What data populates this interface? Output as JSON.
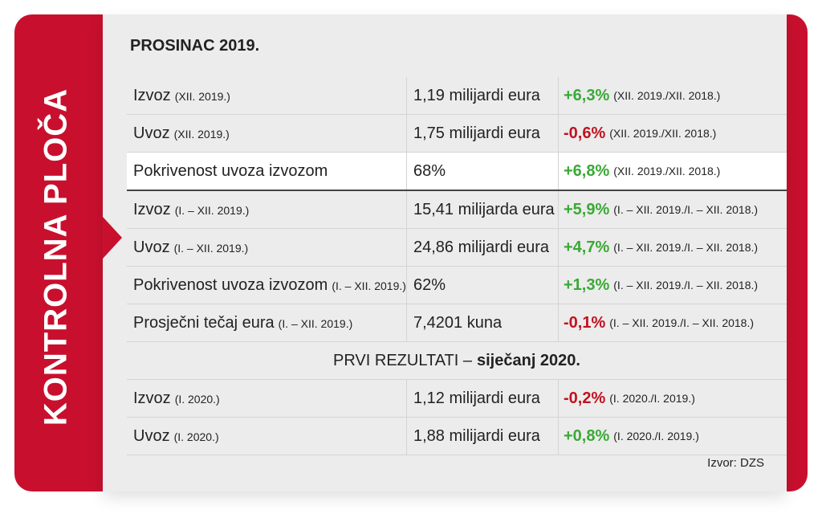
{
  "side_label": "KONTROLNA PLOČA",
  "title": "PROSINAC 2019.",
  "sections": [
    {
      "rows": [
        {
          "label": "Izvoz",
          "period": "(XII. 2019.)",
          "value": "1,19 milijardi eura",
          "change": "+6,3%",
          "change_period": "(XII. 2019./XII. 2018.)",
          "color": "#3aa935"
        },
        {
          "label": "Uvoz",
          "period": "(XII. 2019.)",
          "value": "1,75 milijardi eura",
          "change": "-0,6%",
          "change_period": "(XII. 2019./XII. 2018.)",
          "color": "#c1121f"
        },
        {
          "label": "Pokrivenost uvoza izvozom",
          "value": "68%",
          "change": "+6,8%",
          "change_period": "(XII. 2019./XII. 2018.)",
          "color": "#3aa935"
        },
        {
          "label": "Izvoz",
          "period": "(I. – XII. 2019.)",
          "value": "15,41 milijarda eura",
          "change": "+5,9%",
          "change_period": "(I. – XII. 2019./I. – XII. 2018.)",
          "color": "#3aa935"
        },
        {
          "label": "Uvoz",
          "period": "(I. – XII. 2019.)",
          "value": "24,86 milijardi eura",
          "change": "+4,7%",
          "change_period": "(I. – XII. 2019./I. – XII. 2018.)",
          "color": "#3aa935"
        },
        {
          "label": "Pokrivenost uvoza izvozom",
          "period": "(I. – XII. 2019.)",
          "value": "62%",
          "change": "+1,3%",
          "change_period": "(I. – XII. 2019./I. – XII. 2018.)",
          "color": "#3aa935"
        },
        {
          "label": "Prosječni tečaj eura",
          "period": "(I. – XII. 2019.)",
          "value": "7,4201 kuna",
          "change": "-0,1%",
          "change_period": "(I. – XII. 2019./I. – XII. 2018.)",
          "color": "#c1121f"
        }
      ]
    },
    {
      "heading": "PRVI REZULTATI –",
      "heading_bold": "siječanj 2020.",
      "rows": [
        {
          "label": "Izvoz",
          "period": "(I. 2020.)",
          "value": "1,12 milijardi eura",
          "change": "-0,2%",
          "change_period": "(I. 2020./I. 2019.)",
          "color": "#c1121f"
        },
        {
          "label": "Uvoz",
          "period": "(I. 2020.)",
          "value": "1,88 milijardi eura",
          "change": "+0,8%",
          "change_period": "(I. 2020./I. 2019.)",
          "color": "#3aa935"
        }
      ]
    }
  ],
  "source": "Izvor: DZS"
}
